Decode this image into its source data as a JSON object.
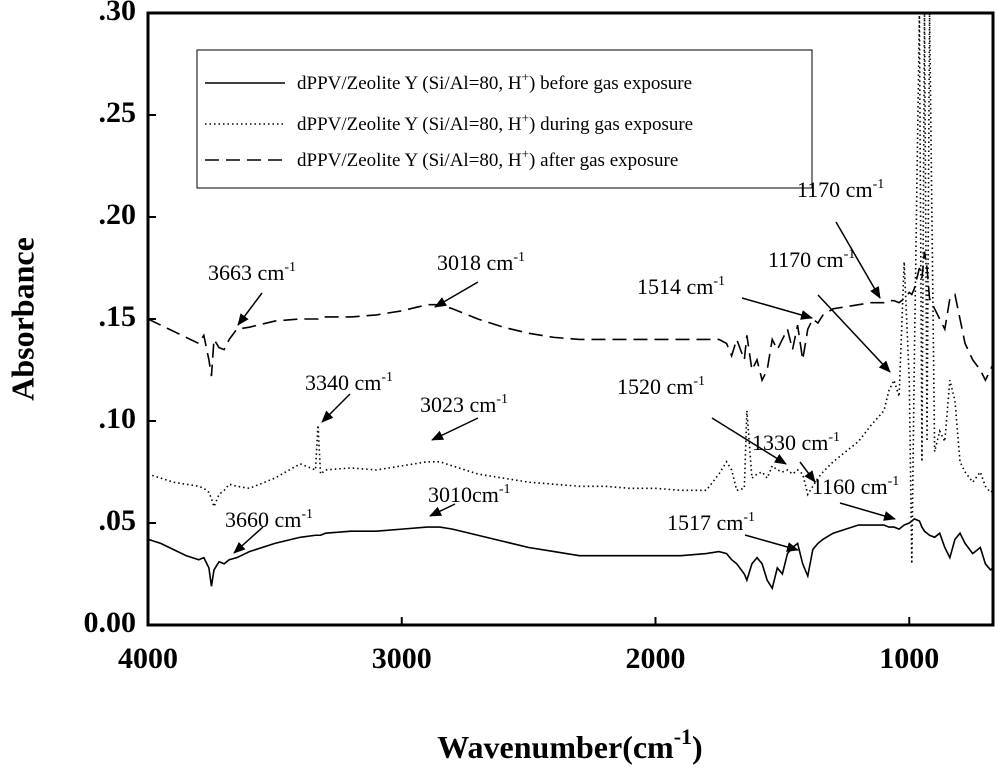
{
  "chart_data": {
    "type": "line",
    "x_label": [
      "Wavenumber(cm",
      "-1",
      ")"
    ],
    "y_label": "Absorbance",
    "xlim": [
      4000,
      670
    ],
    "ylim": [
      0,
      0.3
    ],
    "xticks": [
      4000,
      3000,
      2000,
      1000
    ],
    "yticks": [
      {
        "value": 0,
        "label": "0.00"
      },
      {
        "value": 0.05,
        "label": ".05"
      },
      {
        "value": 0.1,
        "label": ".10"
      },
      {
        "value": 0.15,
        "label": ".15"
      },
      {
        "value": 0.2,
        "label": ".20"
      },
      {
        "value": 0.25,
        "label": ".25"
      },
      {
        "value": 0.3,
        "label": ".30"
      }
    ],
    "x": [
      4000,
      3950,
      3900,
      3850,
      3800,
      3780,
      3760,
      3750,
      3740,
      3720,
      3700,
      3680,
      3650,
      3600,
      3500,
      3400,
      3340,
      3330,
      3320,
      3300,
      3200,
      3100,
      3000,
      2900,
      2850,
      2800,
      2700,
      2600,
      2500,
      2400,
      2300,
      2200,
      2100,
      2000,
      1900,
      1800,
      1750,
      1720,
      1700,
      1680,
      1650,
      1640,
      1620,
      1600,
      1580,
      1560,
      1540,
      1520,
      1500,
      1480,
      1460,
      1440,
      1420,
      1400,
      1380,
      1360,
      1340,
      1300,
      1250,
      1200,
      1150,
      1100,
      1080,
      1060,
      1040,
      1020,
      1000,
      990,
      980,
      960,
      950,
      940,
      930,
      920,
      900,
      880,
      860,
      840,
      820,
      800,
      780,
      750,
      720,
      700,
      680,
      670
    ],
    "series": [
      {
        "name": [
          "dPPV/Zeolite Y (Si/Al=80, H",
          "+",
          ") before gas exposure"
        ],
        "color": "#000000",
        "style": "solid",
        "values": [
          0.042,
          0.04,
          0.037,
          0.034,
          0.032,
          0.033,
          0.028,
          0.019,
          0.027,
          0.031,
          0.03,
          0.032,
          0.033,
          0.036,
          0.04,
          0.043,
          0.044,
          0.044,
          0.044,
          0.045,
          0.046,
          0.046,
          0.047,
          0.048,
          0.048,
          0.047,
          0.044,
          0.041,
          0.038,
          0.036,
          0.034,
          0.034,
          0.034,
          0.034,
          0.034,
          0.035,
          0.036,
          0.035,
          0.032,
          0.03,
          0.025,
          0.022,
          0.03,
          0.033,
          0.03,
          0.022,
          0.018,
          0.028,
          0.025,
          0.035,
          0.038,
          0.04,
          0.03,
          0.024,
          0.037,
          0.04,
          0.042,
          0.045,
          0.047,
          0.049,
          0.049,
          0.049,
          0.048,
          0.048,
          0.047,
          0.049,
          0.05,
          0.051,
          0.052,
          0.051,
          0.048,
          0.046,
          0.045,
          0.044,
          0.043,
          0.045,
          0.038,
          0.033,
          0.042,
          0.045,
          0.04,
          0.035,
          0.038,
          0.03,
          0.027,
          0.028
        ]
      },
      {
        "name": [
          "dPPV/Zeolite Y (Si/Al=80, H",
          "+",
          ") during gas exposure"
        ],
        "color": "#000000",
        "style": "dotted",
        "values": [
          0.074,
          0.072,
          0.07,
          0.069,
          0.068,
          0.067,
          0.065,
          0.062,
          0.058,
          0.064,
          0.066,
          0.069,
          0.068,
          0.067,
          0.072,
          0.079,
          0.076,
          0.098,
          0.074,
          0.076,
          0.077,
          0.076,
          0.078,
          0.08,
          0.08,
          0.078,
          0.074,
          0.072,
          0.07,
          0.069,
          0.068,
          0.068,
          0.067,
          0.067,
          0.066,
          0.066,
          0.074,
          0.08,
          0.076,
          0.066,
          0.067,
          0.105,
          0.072,
          0.074,
          0.075,
          0.072,
          0.078,
          0.076,
          0.075,
          0.076,
          0.074,
          0.076,
          0.074,
          0.064,
          0.068,
          0.072,
          0.075,
          0.08,
          0.085,
          0.09,
          0.098,
          0.105,
          0.115,
          0.12,
          0.112,
          0.178,
          0.12,
          0.03,
          0.13,
          0.3,
          0.08,
          0.3,
          0.09,
          0.3,
          0.085,
          0.095,
          0.09,
          0.12,
          0.11,
          0.08,
          0.075,
          0.07,
          0.075,
          0.068,
          0.065,
          0.066
        ]
      },
      {
        "name": [
          "dPPV/Zeolite Y (Si/Al=80, H",
          "+",
          ") after gas exposure"
        ],
        "color": "#000000",
        "style": "dashed",
        "values": [
          0.15,
          0.147,
          0.144,
          0.141,
          0.138,
          0.142,
          0.13,
          0.122,
          0.14,
          0.136,
          0.135,
          0.14,
          0.145,
          0.146,
          0.149,
          0.15,
          0.15,
          0.15,
          0.151,
          0.151,
          0.151,
          0.152,
          0.154,
          0.157,
          0.157,
          0.155,
          0.15,
          0.146,
          0.143,
          0.141,
          0.14,
          0.14,
          0.14,
          0.14,
          0.14,
          0.14,
          0.14,
          0.138,
          0.132,
          0.14,
          0.13,
          0.142,
          0.125,
          0.13,
          0.12,
          0.125,
          0.14,
          0.135,
          0.14,
          0.145,
          0.135,
          0.147,
          0.13,
          0.145,
          0.15,
          0.148,
          0.152,
          0.155,
          0.156,
          0.157,
          0.158,
          0.158,
          0.159,
          0.159,
          0.158,
          0.16,
          0.163,
          0.162,
          0.165,
          0.175,
          0.17,
          0.183,
          0.175,
          0.16,
          0.155,
          0.15,
          0.145,
          0.16,
          0.162,
          0.15,
          0.138,
          0.13,
          0.125,
          0.12,
          0.125,
          0.128
        ]
      }
    ],
    "annotations": [
      {
        "text": "3663 cm",
        "sup": "-1"
      },
      {
        "text": "3018 cm",
        "sup": "-1"
      },
      {
        "text": "1170 cm",
        "sup": "-1"
      },
      {
        "text": "1170 cm",
        "sup": "-1"
      },
      {
        "text": "1514 cm",
        "sup": "-1"
      },
      {
        "text": "3340 cm",
        "sup": "-1"
      },
      {
        "text": "3023 cm",
        "sup": "-1"
      },
      {
        "text": "1520 cm",
        "sup": "-1"
      },
      {
        "text": "1330 cm",
        "sup": "-1"
      },
      {
        "text": "3660 cm",
        "sup": "-1"
      },
      {
        "text": "3010cm",
        "sup": "-1"
      },
      {
        "text": "1160 cm",
        "sup": "-1"
      },
      {
        "text": "1517 cm",
        "sup": "-1"
      }
    ],
    "legend": "upper left"
  }
}
